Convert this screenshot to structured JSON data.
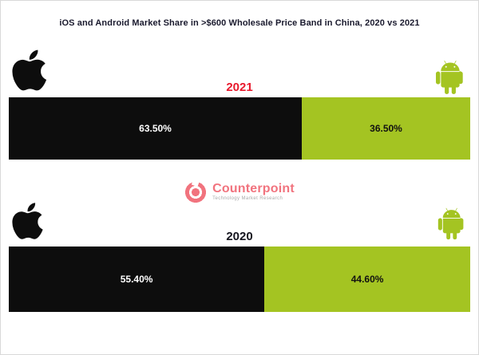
{
  "title": "iOS and Android Market Share in >$600 Wholesale Price Band in China, 2020 vs 2021",
  "watermark": {
    "name": "Counterpoint",
    "tagline": "Technology Market Research"
  },
  "colors": {
    "ios_bar": "#0d0d0d",
    "android_bar": "#a4c422",
    "android_icon": "#a4c422",
    "year_2021": "#e8192c",
    "year_2020": "#15151f",
    "logo_pink": "#ef5b68",
    "title_text": "#1a1a2e"
  },
  "chart_data": {
    "type": "bar",
    "subtype": "horizontal-stacked-100pct",
    "title": "iOS and Android Market Share in >$600 Wholesale Price Band in China, 2020 vs 2021",
    "categories": [
      "2021",
      "2020"
    ],
    "series": [
      {
        "name": "iOS",
        "values": [
          63.5,
          55.4
        ],
        "color": "#0d0d0d"
      },
      {
        "name": "Android",
        "values": [
          36.5,
          44.6
        ],
        "color": "#a4c422"
      }
    ],
    "xlim": [
      0,
      100
    ],
    "grid": false,
    "legend": "icons (Apple logo left, Android robot right)",
    "sections": [
      {
        "year": "2021",
        "ios_value": 63.5,
        "android_value": 36.5,
        "ios_label": "63.50%",
        "android_label": "36.50%"
      },
      {
        "year": "2020",
        "ios_value": 55.4,
        "android_value": 44.6,
        "ios_label": "55.40%",
        "android_label": "44.60%"
      }
    ]
  }
}
